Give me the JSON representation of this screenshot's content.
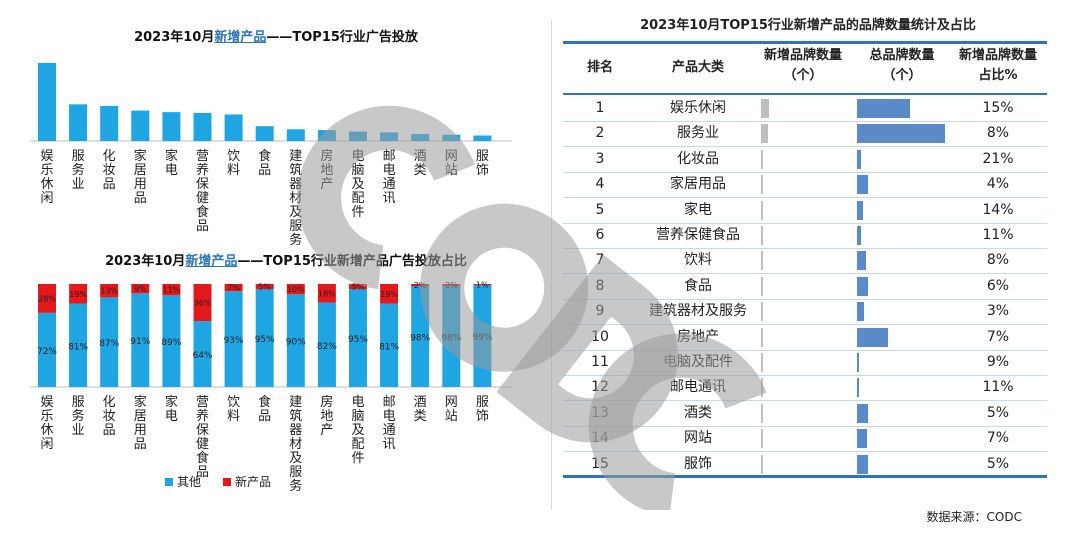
{
  "colors": {
    "accent": "#2e75b6",
    "bar_blue": "#1ea5e2",
    "bar_red": "#e4191c",
    "table_bar": "#5b8ac9",
    "table_bar_gray": "#bfbfbf"
  },
  "top_chart": {
    "title_prefix": "2023年10月",
    "title_highlight": "新增产品",
    "title_suffix": "——TOP15行业广告投放"
  },
  "bottom_chart": {
    "title_prefix": "2023年10月",
    "title_highlight": "新增产品",
    "title_suffix": "——TOP15行业新增产品广告投放占比",
    "legend_other": "其他",
    "legend_new": "新产品"
  },
  "table": {
    "title": "2023年10月TOP15行业新增产品的品牌数量统计及占比",
    "headers": {
      "rank": "排名",
      "category": "产品大类",
      "new_brands": "新增品牌数量（个）",
      "total_brands": "总品牌数量（个）",
      "ratio": "新增品牌数量占比%"
    },
    "rows": [
      {
        "rank": "1",
        "category": "娱乐休闲",
        "ratio": "15%"
      },
      {
        "rank": "2",
        "category": "服务业",
        "ratio": "8%"
      },
      {
        "rank": "3",
        "category": "化妆品",
        "ratio": "21%"
      },
      {
        "rank": "4",
        "category": "家居用品",
        "ratio": "4%"
      },
      {
        "rank": "5",
        "category": "家电",
        "ratio": "14%"
      },
      {
        "rank": "6",
        "category": "营养保健食品",
        "ratio": "11%"
      },
      {
        "rank": "7",
        "category": "饮料",
        "ratio": "8%"
      },
      {
        "rank": "8",
        "category": "食品",
        "ratio": "6%"
      },
      {
        "rank": "9",
        "category": "建筑器材及服务",
        "ratio": "3%"
      },
      {
        "rank": "10",
        "category": "房地产",
        "ratio": "7%"
      },
      {
        "rank": "11",
        "category": "电脑及配件",
        "ratio": "9%"
      },
      {
        "rank": "12",
        "category": "邮电通讯",
        "ratio": "11%"
      },
      {
        "rank": "13",
        "category": "酒类",
        "ratio": "5%"
      },
      {
        "rank": "14",
        "category": "网站",
        "ratio": "7%"
      },
      {
        "rank": "15",
        "category": "服饰",
        "ratio": "5%"
      }
    ]
  },
  "source": "数据来源：CODC",
  "watermark": "CODC",
  "chart_data": [
    {
      "type": "bar",
      "categories": [
        "娱乐休闲",
        "服务业",
        "化妆品",
        "家居用品",
        "家电",
        "营养保健食品",
        "饮料",
        "食品",
        "建筑器材及服务",
        "房地产",
        "电脑及配件",
        "邮电通讯",
        "酒类",
        "网站",
        "服饰"
      ],
      "values": [
        100,
        47,
        45,
        39,
        37,
        36,
        34,
        19,
        15,
        14,
        12,
        11,
        9,
        8,
        7
      ],
      "title": "2023年10月新增产品——TOP15行业广告投放",
      "xlabel": "",
      "ylabel": "",
      "ylim": [
        0,
        100
      ],
      "grid": false
    },
    {
      "type": "bar",
      "stacked": true,
      "categories": [
        "娱乐休闲",
        "服务业",
        "化妆品",
        "家居用品",
        "家电",
        "营养保健食品",
        "饮料",
        "食品",
        "建筑器材及服务",
        "房地产",
        "电脑及配件",
        "邮电通讯",
        "酒类",
        "网站",
        "服饰"
      ],
      "series": [
        {
          "name": "其他",
          "values": [
            72,
            81,
            87,
            91,
            89,
            64,
            93,
            95,
            90,
            82,
            95,
            81,
            98,
            98,
            99
          ],
          "labels": [
            "72%",
            "81%",
            "87%",
            "91%",
            "89%",
            "64%",
            "93%",
            "95%",
            "90%",
            "82%",
            "95%",
            "81%",
            "98%",
            "98%",
            "99%"
          ]
        },
        {
          "name": "新产品",
          "values": [
            28,
            19,
            13,
            9,
            11,
            36,
            7,
            5,
            10,
            18,
            5,
            19,
            2,
            2,
            1
          ],
          "labels": [
            "28%",
            "19%",
            "13%",
            "9%",
            "11%",
            "36%",
            "7%",
            "5%",
            "10%",
            "18%",
            "5%",
            "19%",
            "2%",
            "2%",
            "1%"
          ]
        }
      ],
      "title": "2023年10月新增产品——TOP15行业新增产品广告投放占比",
      "ylim": [
        0,
        100
      ],
      "legend": "bottom",
      "grid": false
    },
    {
      "type": "table",
      "categories": [
        "娱乐休闲",
        "服务业",
        "化妆品",
        "家居用品",
        "家电",
        "营养保健食品",
        "饮料",
        "食品",
        "建筑器材及服务",
        "房地产",
        "电脑及配件",
        "邮电通讯",
        "酒类",
        "网站",
        "服饰"
      ],
      "series": [
        {
          "name": "新增品牌数量（个）",
          "values": [
            9,
            8,
            1,
            1,
            1,
            1,
            1,
            1,
            1,
            1,
            1,
            1,
            1,
            1,
            1
          ]
        },
        {
          "name": "总品牌数量（个）",
          "values": [
            60,
            100,
            5,
            13,
            7,
            4,
            10,
            13,
            8,
            35,
            2,
            2,
            12,
            11,
            12
          ]
        }
      ],
      "ratio": [
        15,
        8,
        21,
        4,
        14,
        11,
        8,
        6,
        3,
        7,
        9,
        11,
        5,
        7,
        5
      ]
    }
  ]
}
